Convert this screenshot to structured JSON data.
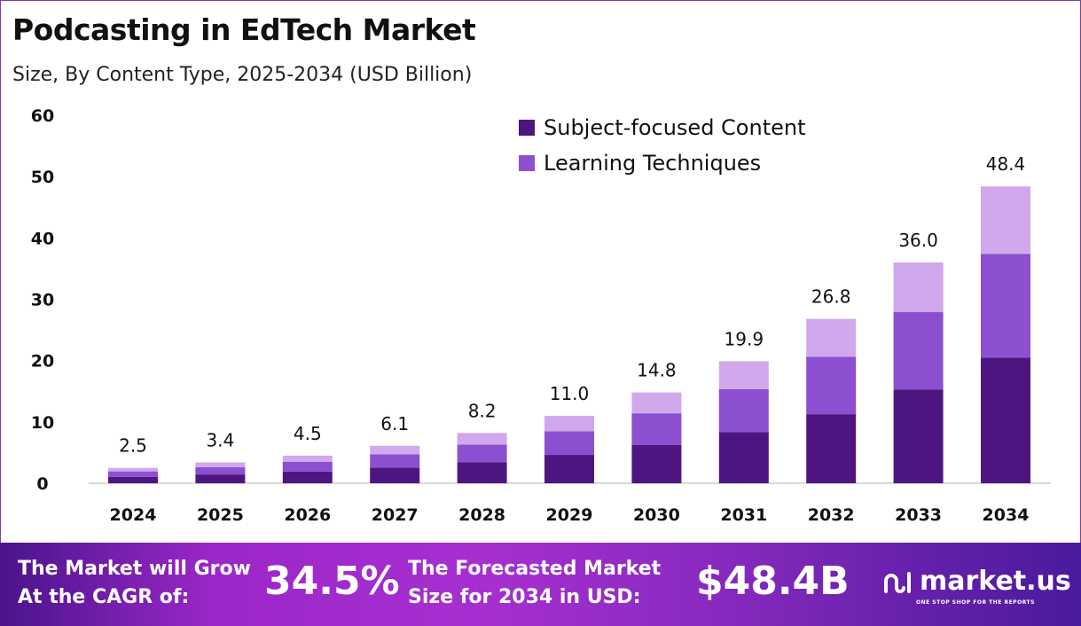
{
  "chart_data": {
    "type": "bar",
    "stacked": true,
    "title": "Podcasting in EdTech Market",
    "subtitle": "Size, By Content Type, 2025-2034 (USD Billion)",
    "categories": [
      "2024",
      "2025",
      "2026",
      "2027",
      "2028",
      "2029",
      "2030",
      "2031",
      "2032",
      "2033",
      "2034"
    ],
    "series": [
      {
        "name": "Subject-focused Content",
        "color": "#4e1580",
        "values": [
          1.05,
          1.43,
          1.89,
          2.56,
          3.44,
          4.62,
          6.22,
          8.36,
          11.26,
          15.3,
          20.5
        ]
      },
      {
        "name": "Learning Techniques",
        "color": "#8b4fcf",
        "values": [
          0.88,
          1.19,
          1.58,
          2.14,
          2.87,
          3.85,
          5.18,
          6.97,
          9.38,
          12.6,
          16.9
        ]
      },
      {
        "color": "#d1a8ec",
        "values": [
          0.57,
          0.78,
          1.03,
          1.4,
          1.89,
          2.53,
          3.4,
          4.57,
          6.16,
          8.1,
          11.0
        ]
      }
    ],
    "totals": [
      "2.5",
      "3.4",
      "4.5",
      "6.1",
      "8.2",
      "11.0",
      "14.8",
      "19.9",
      "26.8",
      "36.0",
      "48.4"
    ],
    "ylim": [
      0,
      60
    ],
    "yticks": [
      "0",
      "10",
      "20",
      "30",
      "40",
      "50",
      "60"
    ],
    "grid": false,
    "legend_position": "top-center"
  },
  "banner": {
    "cagr_label_1": "The Market will Grow",
    "cagr_label_2": "At the CAGR of:",
    "cagr_value": "34.5%",
    "size_label_1": "The Forecasted Market",
    "size_label_2": "Size for 2034 in USD:",
    "size_value": "$48.4B",
    "logo_name": "market.us",
    "logo_tagline": "ONE STOP SHOP FOR THE REPORTS"
  }
}
